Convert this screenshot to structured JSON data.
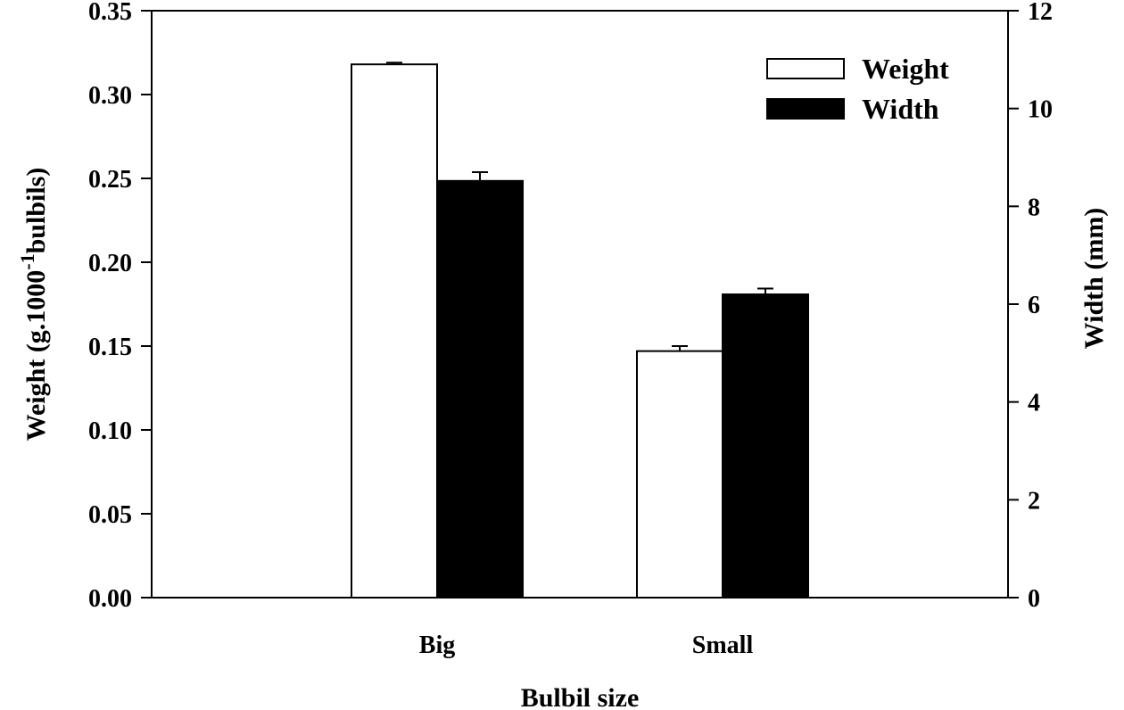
{
  "chart_data": {
    "type": "bar",
    "categories": [
      "Big",
      "Small"
    ],
    "series": [
      {
        "name": "Weight",
        "axis": "left",
        "fill": "#ffffff",
        "values": [
          0.318,
          0.147
        ],
        "errors": [
          0.001,
          0.003
        ]
      },
      {
        "name": "Width",
        "axis": "right",
        "fill": "#000000",
        "values": [
          8.52,
          6.2
        ],
        "errors": [
          0.18,
          0.12
        ]
      }
    ],
    "xlabel": "Bulbil size",
    "ylabel_left": {
      "main": "Weight (g.1000",
      "sup": "-1",
      "rest": "bulbils)"
    },
    "ylabel_right": "Width (mm)",
    "ylim_left": [
      0,
      0.35
    ],
    "ylim_right": [
      0,
      12
    ],
    "yticks_left": [
      "0.00",
      "0.05",
      "0.10",
      "0.15",
      "0.20",
      "0.25",
      "0.30",
      "0.35"
    ],
    "yticks_right": [
      "0",
      "2",
      "4",
      "6",
      "8",
      "10",
      "12"
    ],
    "legend_position": "top-right",
    "grid": false
  }
}
